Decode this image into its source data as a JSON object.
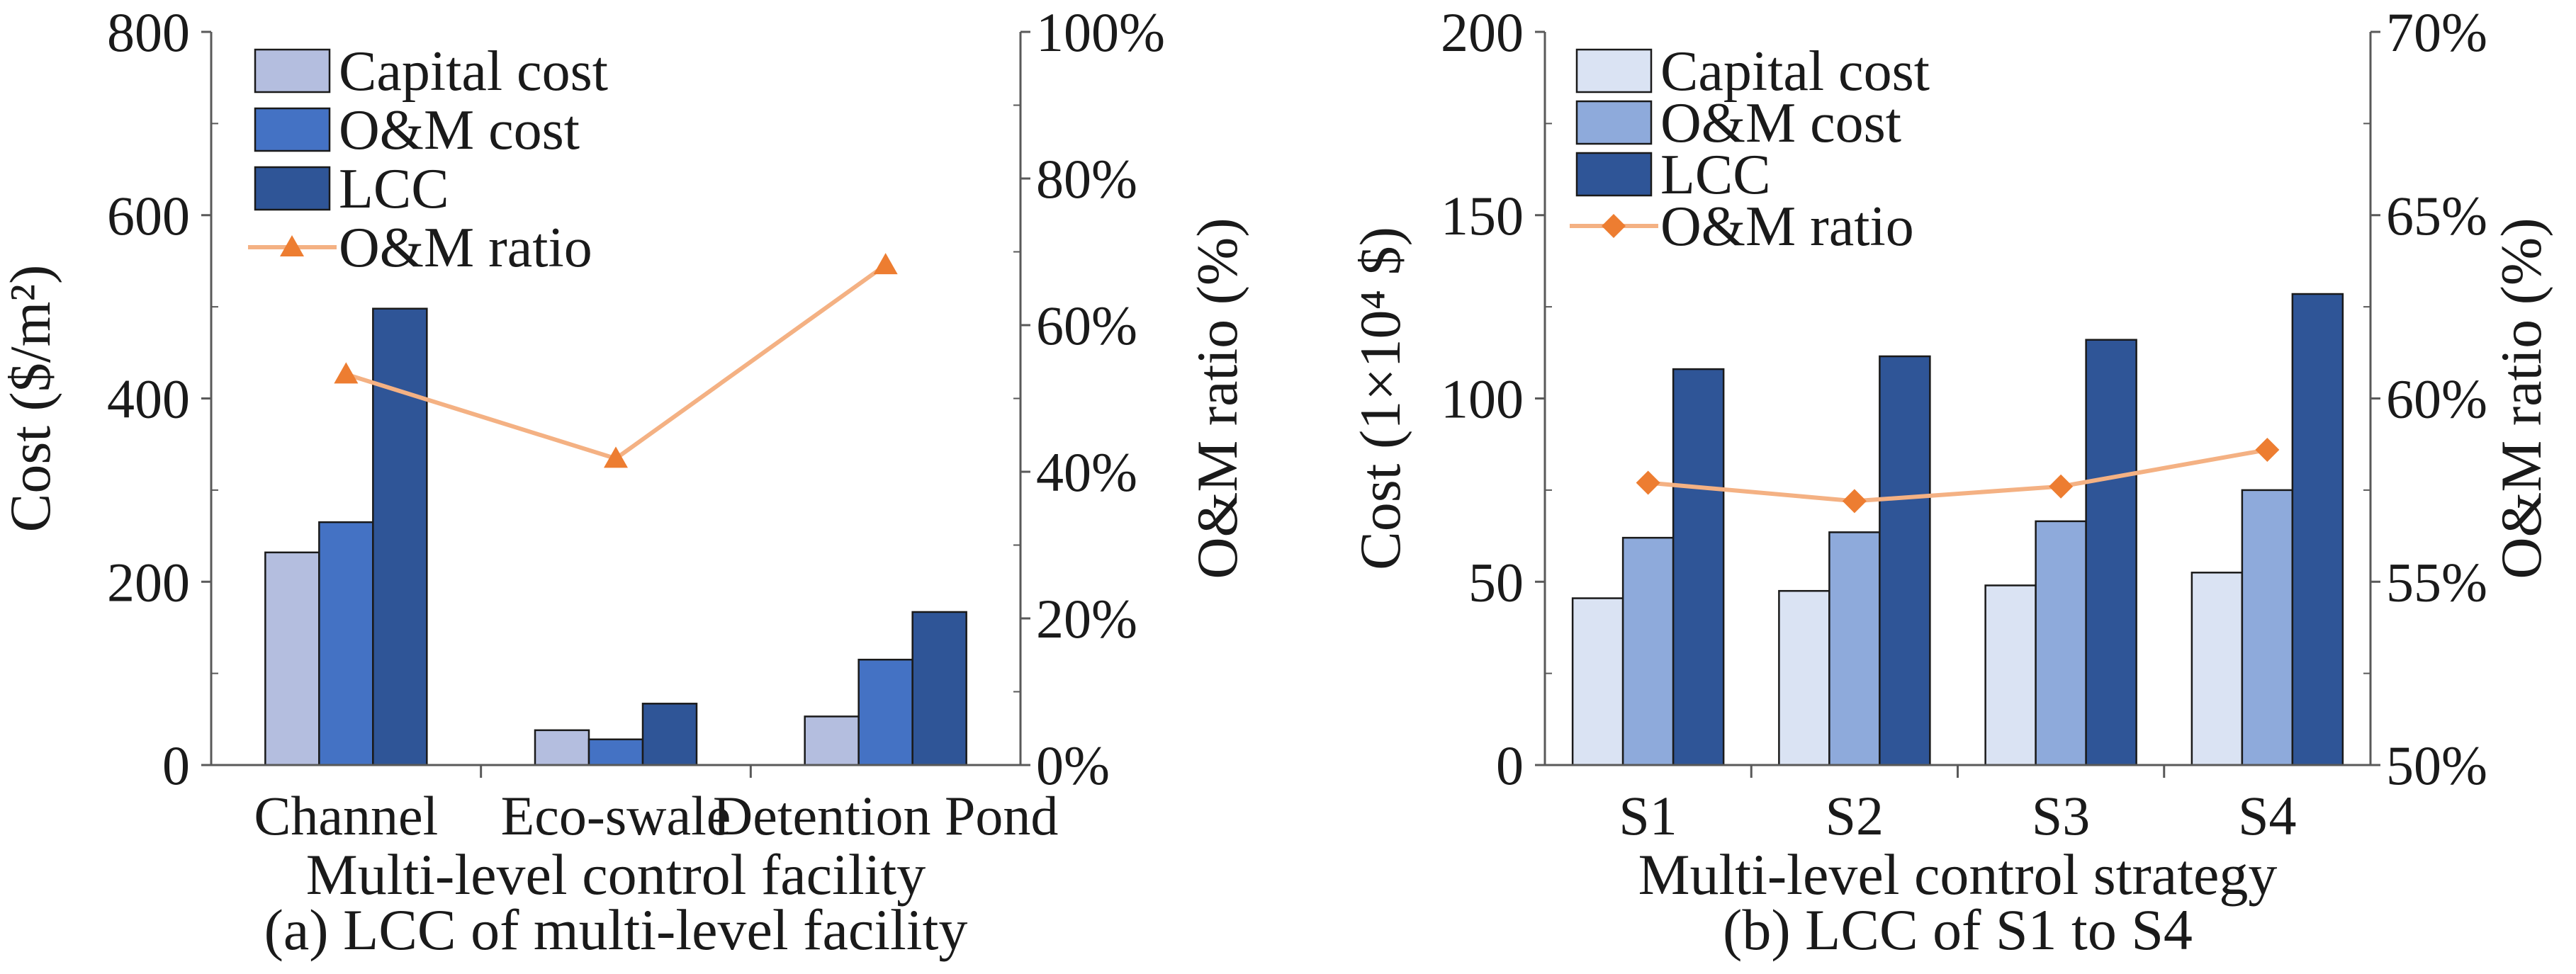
{
  "colors": {
    "a_capital": "#b4bedf",
    "a_om": "#4472c4",
    "a_lcc": "#2f5597",
    "b_capital": "#dae3f3",
    "b_om": "#8eaadb",
    "b_lcc": "#2f5597",
    "ratio": "#f4b183",
    "ratio_marker": "#ed7d31",
    "bar_edge": "#1a1a1a",
    "axis": "#595959"
  },
  "chart_data": [
    {
      "id": "a",
      "type": "bar",
      "categories": [
        "Channel",
        "Eco-swale",
        "Detention Pond"
      ],
      "series": [
        {
          "name": "Capital cost",
          "values": [
            232,
            38,
            53
          ]
        },
        {
          "name": "O&M cost",
          "values": [
            265,
            28,
            115
          ]
        },
        {
          "name": "LCC",
          "values": [
            498,
            67,
            167
          ]
        }
      ],
      "line_series": {
        "name": "O&M ratio",
        "values": [
          53.3,
          41.8,
          68.2
        ],
        "marker": "triangle",
        "axis": "right"
      },
      "ylim": [
        0,
        800
      ],
      "yticks": [
        0,
        200,
        400,
        600,
        800
      ],
      "y2lim": [
        0,
        100
      ],
      "y2ticks": [
        "0%",
        "20%",
        "40%",
        "60%",
        "80%",
        "100%"
      ],
      "ylabel": "Cost ($/m²)",
      "y2label": "O&M ratio (%)",
      "xlabel": "Multi-level control facility",
      "caption": "(a) LCC of  multi-level facility",
      "legend": [
        "Capital cost",
        "O&M cost",
        "LCC",
        "O&M ratio"
      ],
      "legend_position": "top-left",
      "grid": false
    },
    {
      "id": "b",
      "type": "bar",
      "categories": [
        "S1",
        "S2",
        "S3",
        "S4"
      ],
      "series": [
        {
          "name": "Capital cost",
          "values": [
            45.5,
            47.5,
            49,
            52.5
          ]
        },
        {
          "name": "O&M cost",
          "values": [
            62,
            63.5,
            66.5,
            75
          ]
        },
        {
          "name": "LCC",
          "values": [
            108,
            111.5,
            116,
            128.5
          ]
        }
      ],
      "line_series": {
        "name": "O&M ratio",
        "values": [
          57.7,
          57.2,
          57.6,
          58.6
        ],
        "marker": "diamond",
        "axis": "right"
      },
      "ylim": [
        0,
        200
      ],
      "yticks": [
        0,
        50,
        100,
        150,
        200
      ],
      "y2lim": [
        50,
        70
      ],
      "y2ticks": [
        "50%",
        "55%",
        "60%",
        "65%",
        "70%"
      ],
      "ylabel": "Cost (1×10⁴ $)",
      "y2label": "O&M ratio (%)",
      "xlabel": "Multi-level control strategy",
      "caption": "(b) LCC of  S1 to S4",
      "legend": [
        "Capital cost",
        "O&M cost",
        "LCC",
        "O&M ratio"
      ],
      "legend_position": "top-left",
      "grid": false
    }
  ]
}
